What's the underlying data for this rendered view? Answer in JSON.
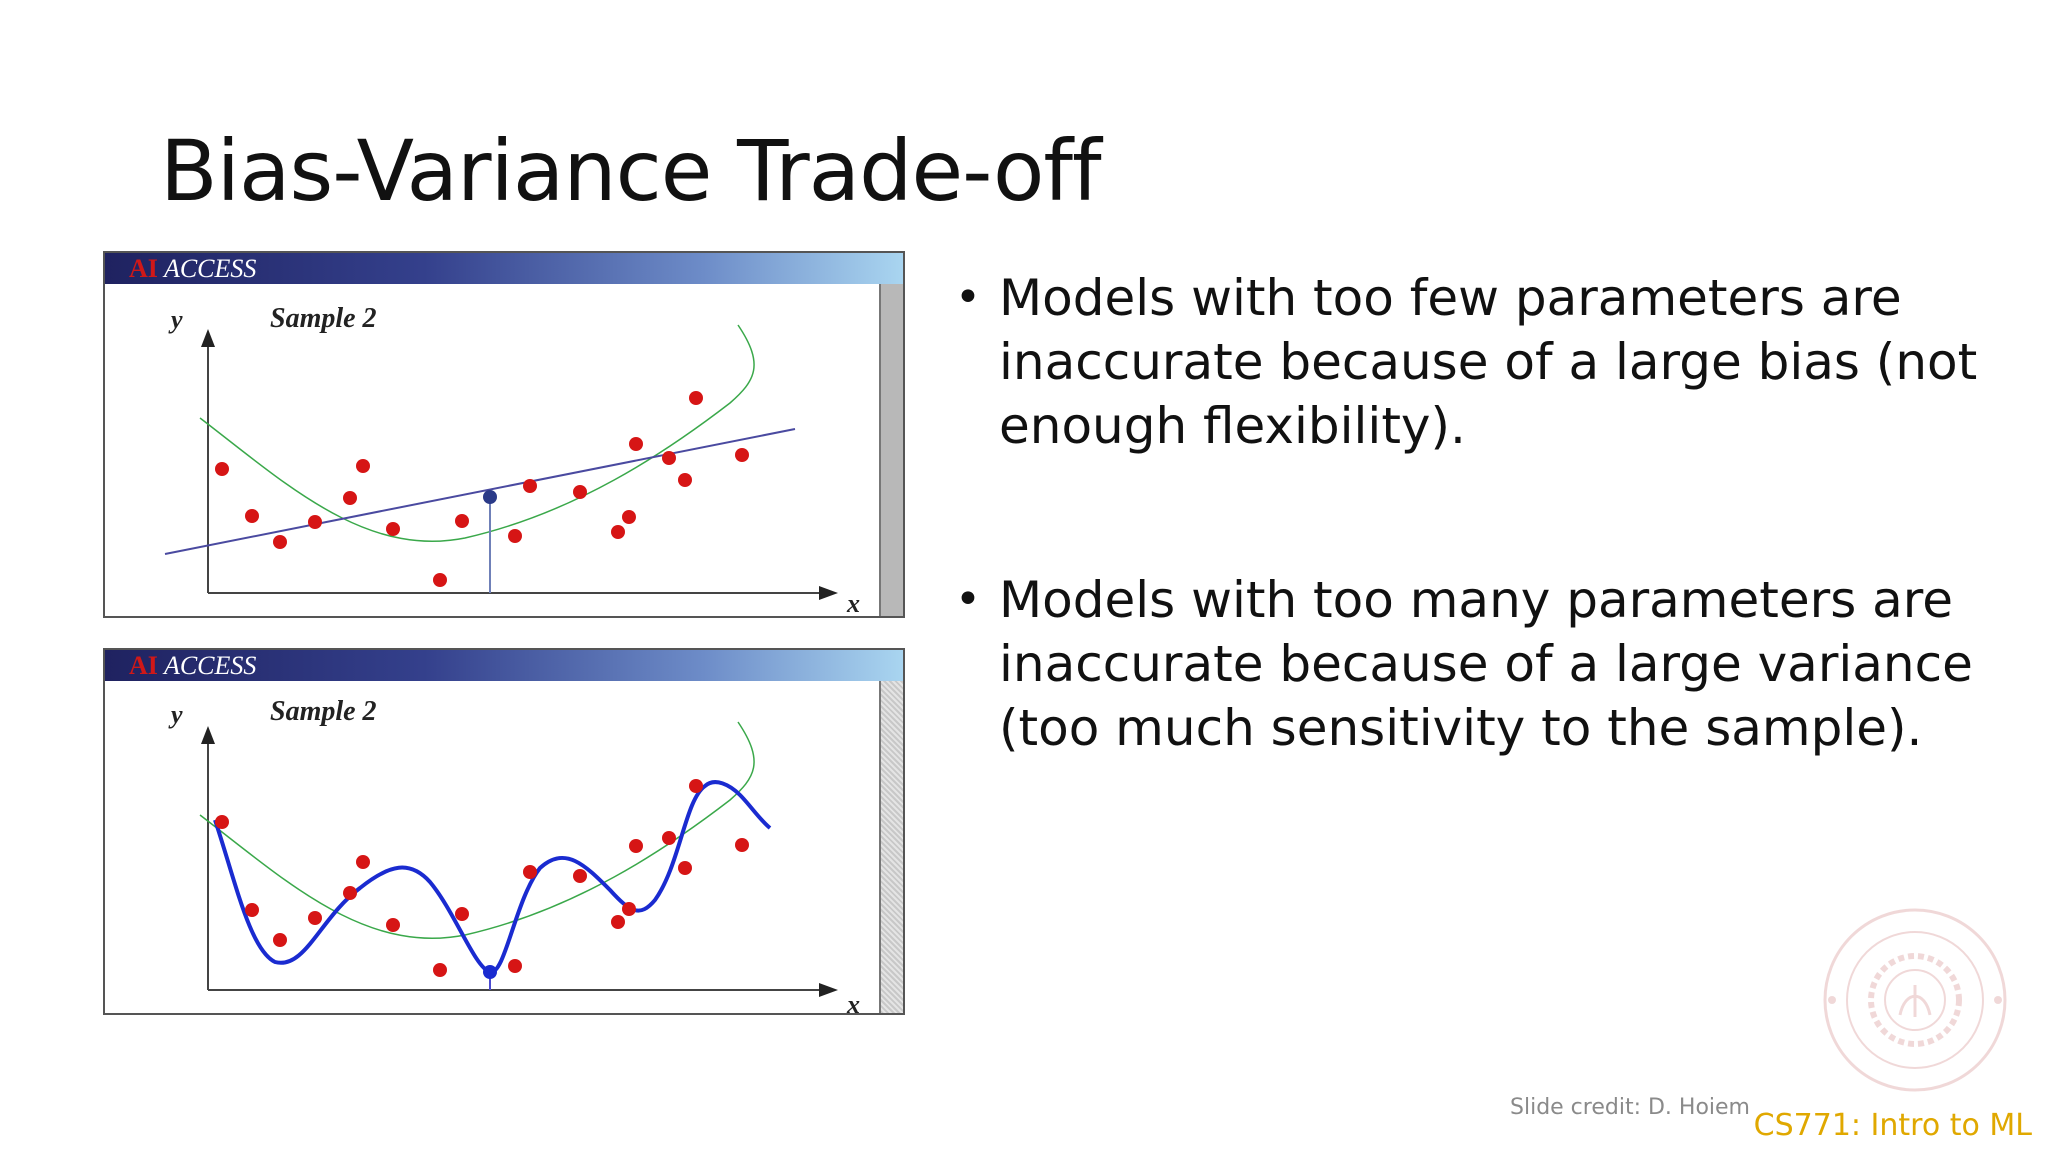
{
  "slide": {
    "title": "Bias-Variance Trade-off",
    "credit": "Slide credit: D. Hoiem",
    "course": "CS771: Intro to ML",
    "accent_color": "#e0a800"
  },
  "figures": [
    {
      "header_ai": "AI",
      "header_access": "ACCESS",
      "sample_label": "Sample 2",
      "y_label": "y",
      "x_label": "x",
      "fit": "linear"
    },
    {
      "header_ai": "AI",
      "header_access": "ACCESS",
      "sample_label": "Sample 2",
      "y_label": "y",
      "x_label": "x",
      "fit": "high-degree polynomial"
    }
  ],
  "bullets": [
    "Models with too few parameters are inaccurate because of a large bias (not enough flexibility).",
    "Models with too many parameters are inaccurate because of a large variance (too much sensitivity to the sample)."
  ]
}
